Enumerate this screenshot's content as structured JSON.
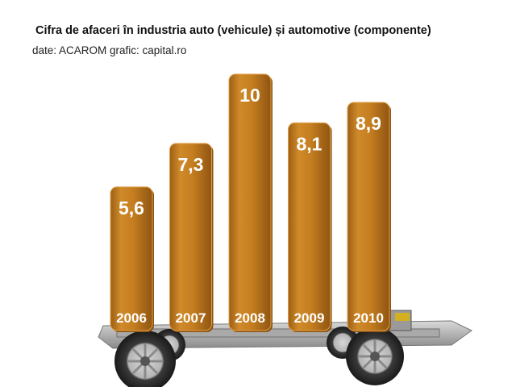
{
  "chart_data": {
    "type": "bar",
    "title": "Cifra de afaceri în industria auto (vehicule) și automotive (componente)",
    "subtitle": "date: ACAROM grafic: capital.ro",
    "categories": [
      "2006",
      "2007",
      "2008",
      "2009",
      "2010"
    ],
    "values": [
      5.6,
      7.3,
      10,
      8.1,
      8.9
    ],
    "value_labels": [
      "5,6",
      "7,3",
      "10",
      "8,1",
      "8,9"
    ],
    "xlabel": "",
    "ylabel": "",
    "ylim": [
      0,
      10
    ],
    "grid": false,
    "legend": "none",
    "colors": {
      "bar": "#c47d1f",
      "bar_highlight": "#e0a04a",
      "bar_shadow": "#8a5210",
      "label_text": "#ffffff"
    }
  }
}
